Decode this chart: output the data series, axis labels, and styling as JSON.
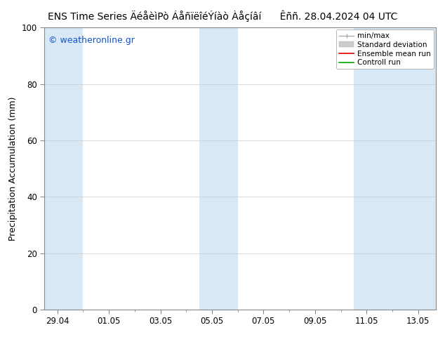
{
  "title_left": "ENS Time Series ÄéåèìPò ÁåñïëîéÝíàò Àåçíâí",
  "title_right": "Êññ. 28.04.2024 04 UTC",
  "ylabel": "Precipitation Accumulation (mm)",
  "ylim": [
    0,
    100
  ],
  "xtick_labels": [
    "29.04",
    "01.05",
    "03.05",
    "05.05",
    "07.05",
    "09.05",
    "11.05",
    "13.05"
  ],
  "xtick_positions": [
    0,
    2,
    4,
    6,
    8,
    10,
    12,
    14
  ],
  "ytick_labels": [
    "0",
    "20",
    "40",
    "60",
    "80",
    "100"
  ],
  "ytick_positions": [
    0,
    20,
    40,
    60,
    80,
    100
  ],
  "watermark": "© weatheronline.gr",
  "watermark_color": "#1155cc",
  "bg_color": "#ffffff",
  "plot_bg_color": "#ffffff",
  "band_color": "#d8e8f5",
  "band_xpositions_days": [
    [
      -0.5,
      1.0
    ],
    [
      5.5,
      7.0
    ],
    [
      11.5,
      13.0
    ],
    [
      13.0,
      14.7
    ]
  ],
  "grid_color": "#cccccc",
  "grid_lw": 0.5,
  "title_fontsize": 10,
  "tick_fontsize": 8.5,
  "ylabel_fontsize": 9,
  "xlim": [
    -0.5,
    14.7
  ],
  "legend_items": [
    {
      "label": "min/max",
      "type": "minmax",
      "color": "#aaaaaa"
    },
    {
      "label": "Standard deviation",
      "type": "band",
      "color": "#cccccc"
    },
    {
      "label": "Ensemble mean run",
      "type": "line",
      "color": "#dd0000"
    },
    {
      "label": "Controll run",
      "type": "line",
      "color": "#00aa00"
    }
  ]
}
